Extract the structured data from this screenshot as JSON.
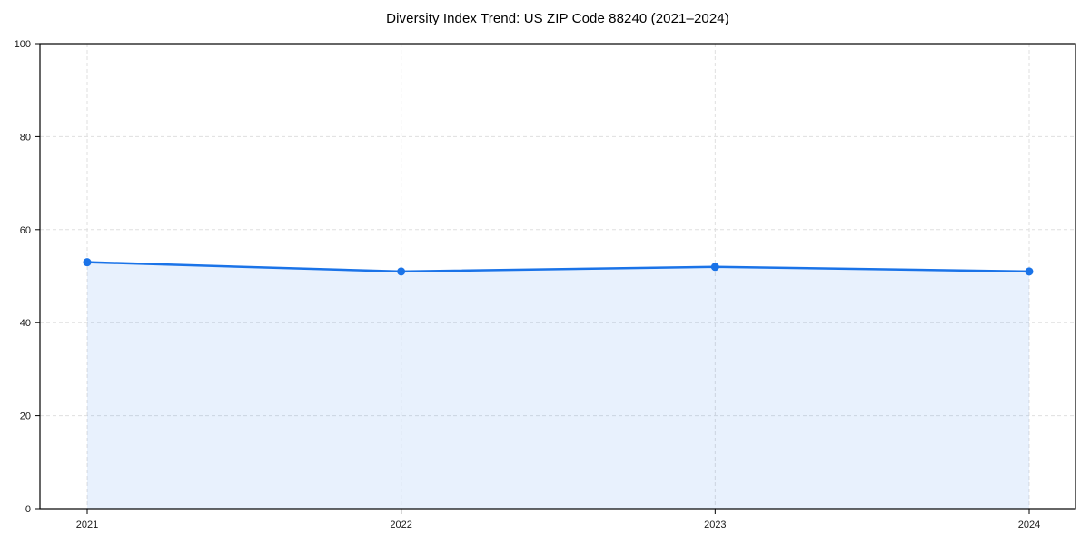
{
  "chart_data": {
    "type": "area",
    "title": "Diversity Index Trend: US ZIP Code 88240 (2021–2024)",
    "x": [
      2021,
      2022,
      2023,
      2024
    ],
    "series": [
      {
        "name": "Diversity Index",
        "values": [
          53,
          51,
          52,
          51
        ]
      }
    ],
    "xlabel": "",
    "ylabel": "",
    "ylim": [
      0,
      100
    ],
    "yticks": [
      0,
      20,
      40,
      60,
      80,
      100
    ],
    "xticks": [
      "2021",
      "2022",
      "2023",
      "2024"
    ],
    "grid": true,
    "grid_style": "dashed",
    "legend": "none",
    "colors": {
      "line": "#1a73e8",
      "marker": "#1a73e8",
      "fill": "rgba(26,115,232,0.10)",
      "grid": "#dfdfdf",
      "spine": "#000000",
      "tick_label": "#1a1a1a",
      "background": "#ffffff"
    }
  }
}
